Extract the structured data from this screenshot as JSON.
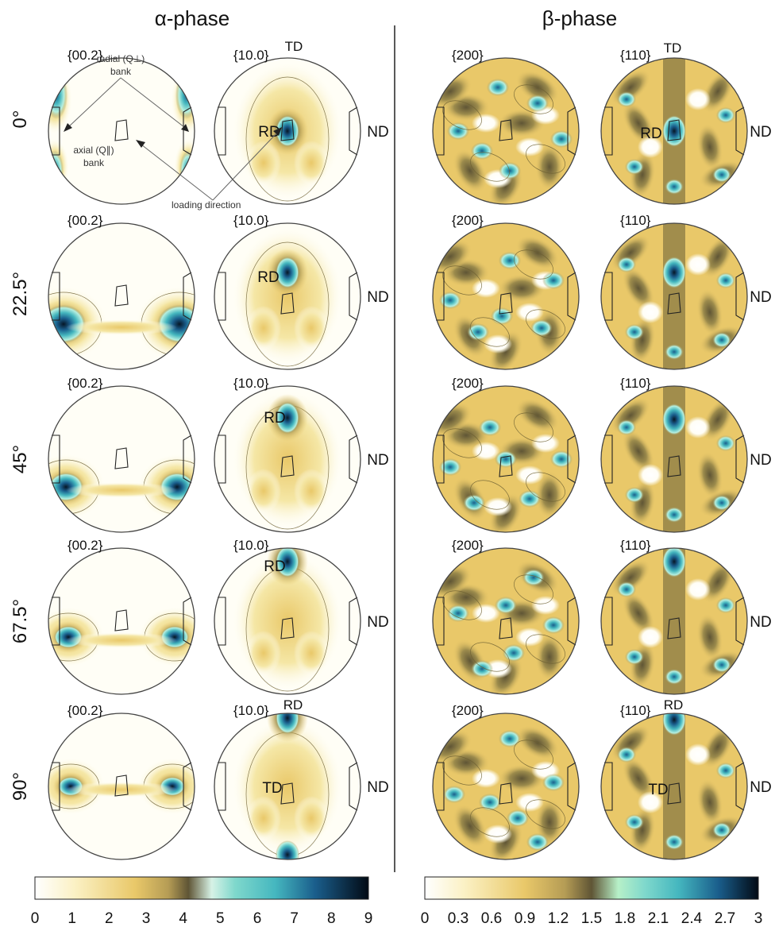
{
  "titles": {
    "alpha": "α-phase",
    "beta": "β-phase"
  },
  "rows": [
    "0°",
    "22.5°",
    "45°",
    "67.5°",
    "90°"
  ],
  "planes": {
    "alpha_a": "{00.2}",
    "alpha_b": "{10.0}",
    "beta_a": "{200}",
    "beta_b": "{110}"
  },
  "directions": {
    "td": "TD",
    "rd": "RD",
    "nd": "ND"
  },
  "annotations": {
    "radial_bank": [
      "radial (Q⊥)",
      "bank"
    ],
    "axial_bank": [
      "axial (Q∥)",
      "bank"
    ],
    "loading_direction": "loading direction"
  },
  "colorbars": {
    "alpha": {
      "ticks": [
        "0",
        "1",
        "2",
        "3",
        "4",
        "5",
        "6",
        "7",
        "8",
        "9"
      ],
      "min": 0,
      "max": 9
    },
    "beta": {
      "ticks": [
        "0",
        "0.3",
        "0.6",
        "0.9",
        "1.2",
        "1.5",
        "1.8",
        "2.1",
        "2.4",
        "2.7",
        "3"
      ],
      "min": 0,
      "max": 3
    }
  },
  "colors": {
    "low": "#fffef6",
    "light_yellow": "#f5e7a6",
    "yellow": "#e9c869",
    "olive": "#9c8b4c",
    "dark_olive": "#5f5535",
    "teal_light": "#b7f0e0",
    "teal": "#45b7bf",
    "blue": "#1a5e8c",
    "dark": "#061626"
  }
}
